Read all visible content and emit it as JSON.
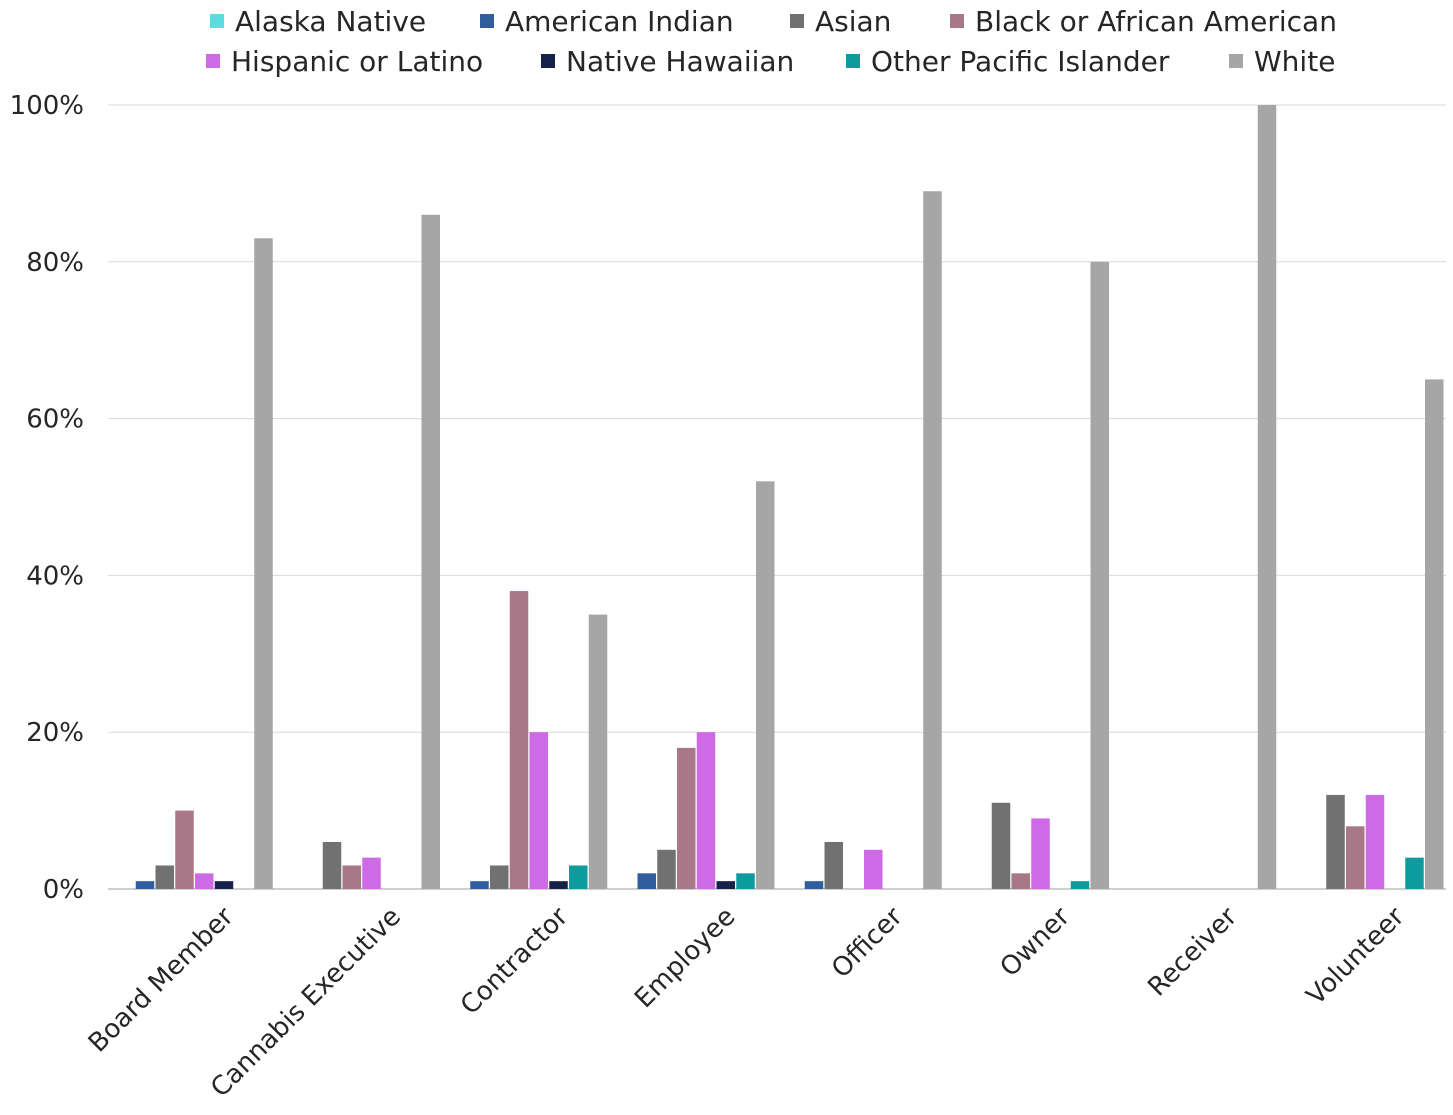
{
  "chart_data": {
    "type": "bar",
    "categories": [
      "Board Member",
      "Cannabis Executive",
      "Contractor",
      "Employee",
      "Officer",
      "Owner",
      "Receiver",
      "Volunteer"
    ],
    "series": [
      {
        "name": "Alaska Native",
        "color": "#5bdde0",
        "values": [
          0,
          0,
          0,
          0,
          0,
          0,
          0,
          0
        ]
      },
      {
        "name": "American Indian",
        "color": "#2f5d9e",
        "values": [
          1,
          0,
          1,
          2,
          1,
          0,
          0,
          0
        ]
      },
      {
        "name": "Asian",
        "color": "#717171",
        "values": [
          3,
          6,
          3,
          5,
          6,
          11,
          0,
          12
        ]
      },
      {
        "name": "Black or African American",
        "color": "#a97888",
        "values": [
          10,
          3,
          38,
          18,
          0,
          2,
          0,
          8
        ]
      },
      {
        "name": "Hispanic or Latino",
        "color": "#cf6ae6",
        "values": [
          2,
          4,
          20,
          20,
          5,
          9,
          0,
          12
        ]
      },
      {
        "name": "Native Hawaiian",
        "color": "#17224a",
        "values": [
          1,
          0,
          1,
          1,
          0,
          0,
          0,
          0
        ]
      },
      {
        "name": "Other Pacific Islander",
        "color": "#0e9b9e",
        "values": [
          0,
          0,
          3,
          2,
          0,
          1,
          0,
          4
        ]
      },
      {
        "name": "White",
        "color": "#a6a6a6",
        "values": [
          83,
          86,
          35,
          52,
          89,
          80,
          100,
          65
        ]
      }
    ],
    "ylim": [
      0,
      100
    ],
    "yticks": [
      "0%",
      "20%",
      "40%",
      "60%",
      "80%",
      "100%"
    ],
    "grid": true,
    "legend": "top"
  }
}
